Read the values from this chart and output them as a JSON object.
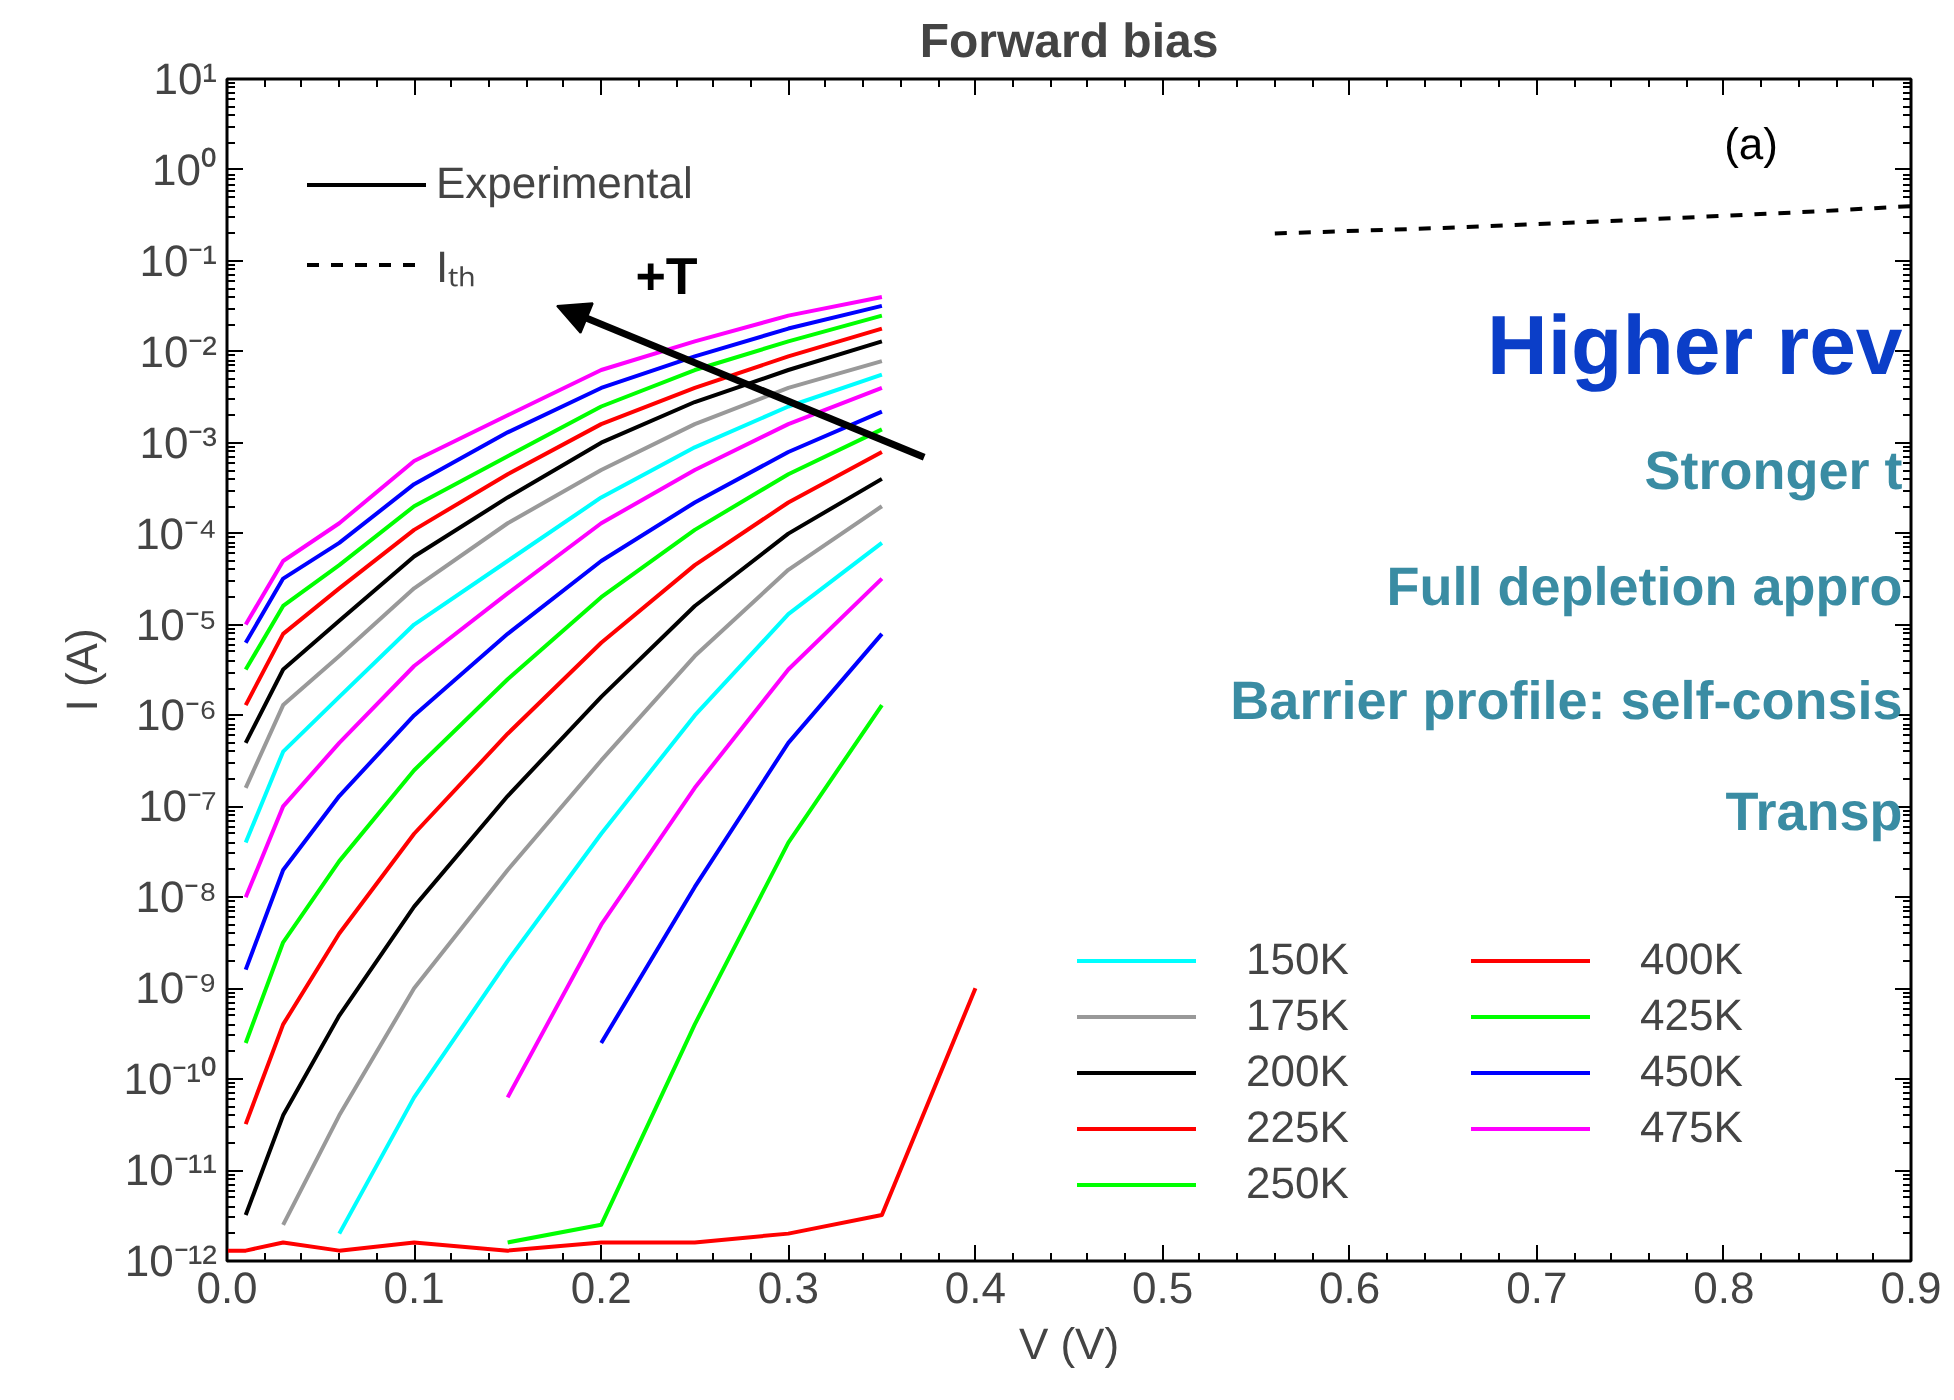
{
  "chart_data": {
    "type": "line",
    "title": "Forward bias",
    "xlabel": "V (V)",
    "ylabel": "I (A)",
    "log": "y",
    "grid": false,
    "legend": "bottom right",
    "xlim": [
      0,
      0.9
    ],
    "ylim": [
      1e-12,
      10
    ],
    "xticks": [
      {
        "value": 0,
        "label": "0.0"
      },
      {
        "value": 0.1,
        "label": "0.1"
      },
      {
        "value": 0.2,
        "label": "0.2"
      },
      {
        "value": 0.3,
        "label": "0.3"
      },
      {
        "value": 0.4,
        "label": "0.4"
      },
      {
        "value": 0.5,
        "label": "0.5"
      },
      {
        "value": 0.6,
        "label": "0.6"
      },
      {
        "value": 0.7,
        "label": "0.7"
      },
      {
        "value": 0.8,
        "label": "0.8"
      },
      {
        "value": 0.9,
        "label": "0.9"
      }
    ],
    "yticks": [
      {
        "value": 1e-12,
        "label": "10⁻¹²"
      },
      {
        "value": 1e-11,
        "label": "10⁻¹¹"
      },
      {
        "value": 1e-10,
        "label": "10⁻¹⁰"
      },
      {
        "value": 1e-09,
        "label": "10⁻⁹"
      },
      {
        "value": 1e-08,
        "label": "10⁻⁸"
      },
      {
        "value": 1e-07,
        "label": "10⁻⁷"
      },
      {
        "value": 1e-06,
        "label": "10⁻⁶"
      },
      {
        "value": 1e-05,
        "label": "10⁻⁵"
      },
      {
        "value": 0.0001,
        "label": "10⁻⁴"
      },
      {
        "value": 0.001,
        "label": "10⁻³"
      },
      {
        "value": 0.01,
        "label": "10⁻²"
      },
      {
        "value": 0.1,
        "label": "10⁻¹"
      },
      {
        "value": 1,
        "label": "10⁰"
      },
      {
        "value": 10,
        "label": "10¹"
      }
    ],
    "x": [
      0,
      0.01,
      0.03,
      0.06,
      0.1,
      0.15,
      0.2,
      0.25,
      0.3,
      0.35,
      0.4
    ],
    "series": [
      {
        "color": "#ff0000",
        "values": [
          1.3e-12,
          1.3e-12,
          1.6e-12,
          1.3e-12,
          1.6e-12,
          1.3e-12,
          1.6e-12,
          1.6e-12,
          2e-12,
          3.2e-12,
          1e-09
        ]
      },
      {
        "color": "#00ff00",
        "values": [
          null,
          null,
          null,
          null,
          null,
          1.6e-12,
          2.5e-12,
          4e-10,
          4e-08,
          1.3e-06,
          null
        ]
      },
      {
        "color": "#0000ff",
        "values": [
          null,
          null,
          null,
          null,
          null,
          null,
          2.5e-10,
          1.3e-08,
          5e-07,
          7.9e-06,
          null
        ]
      },
      {
        "color": "#ff00ff",
        "values": [
          null,
          null,
          null,
          null,
          null,
          6.3e-11,
          5e-09,
          1.6e-07,
          3.2e-06,
          3.2e-05,
          null
        ]
      },
      {
        "name": "150K",
        "color": "#00ffff",
        "values": [
          null,
          null,
          null,
          2e-12,
          6.3e-11,
          2e-09,
          5e-08,
          1e-06,
          1.3e-05,
          7.9e-05,
          null
        ]
      },
      {
        "name": "175K",
        "color": "#999999",
        "values": [
          null,
          null,
          2.5e-12,
          4e-11,
          1e-09,
          2e-08,
          3.2e-07,
          4.5e-06,
          4e-05,
          0.0002,
          null
        ]
      },
      {
        "name": "200K",
        "color": "#000000",
        "values": [
          null,
          3.2e-12,
          4e-11,
          5e-10,
          7.9e-09,
          1.3e-07,
          1.6e-06,
          1.6e-05,
          0.0001,
          0.0004,
          null
        ]
      },
      {
        "name": "225K",
        "color": "#ff0000",
        "values": [
          null,
          3.2e-11,
          4e-10,
          4e-09,
          5e-08,
          6.3e-07,
          6.3e-06,
          4.5e-05,
          0.00022,
          0.00079,
          null
        ]
      },
      {
        "name": "250K",
        "color": "#00ff00",
        "values": [
          null,
          2.5e-10,
          3.2e-09,
          2.5e-08,
          2.5e-07,
          2.5e-06,
          2e-05,
          0.00011,
          0.00045,
          0.0014,
          null
        ]
      },
      {
        "color": "#0000ff",
        "values": [
          null,
          1.6e-09,
          2e-08,
          1.3e-07,
          1e-06,
          7.9e-06,
          5e-05,
          0.00022,
          0.00079,
          0.0022,
          null
        ]
      },
      {
        "color": "#ff00ff",
        "values": [
          null,
          1e-08,
          1e-07,
          5e-07,
          3.5e-06,
          2.2e-05,
          0.00013,
          0.0005,
          0.0016,
          0.004,
          null
        ]
      },
      {
        "color": "#00ffff",
        "values": [
          null,
          4e-08,
          4e-07,
          1.6e-06,
          1e-05,
          5e-05,
          0.00025,
          0.00089,
          0.0025,
          0.0056,
          null
        ]
      },
      {
        "color": "#999999",
        "values": [
          null,
          1.6e-07,
          1.3e-06,
          4.5e-06,
          2.5e-05,
          0.00013,
          0.0005,
          0.0016,
          0.004,
          0.0079,
          null
        ]
      },
      {
        "color": "#000000",
        "values": [
          null,
          5e-07,
          3.2e-06,
          1.1e-05,
          5.6e-05,
          0.00025,
          0.001,
          0.0028,
          0.0063,
          0.013,
          null
        ]
      },
      {
        "name": "400K",
        "color": "#ff0000",
        "values": [
          null,
          1.3e-06,
          7.9e-06,
          2.5e-05,
          0.00011,
          0.00045,
          0.0016,
          0.004,
          0.0089,
          0.018,
          null
        ]
      },
      {
        "name": "425K",
        "color": "#00ff00",
        "values": [
          null,
          3.2e-06,
          1.6e-05,
          4.5e-05,
          0.0002,
          0.00071,
          0.0025,
          0.0063,
          0.013,
          0.025,
          null
        ]
      },
      {
        "name": "450K",
        "color": "#0000ff",
        "values": [
          null,
          6.3e-06,
          3.2e-05,
          7.9e-05,
          0.00035,
          0.0013,
          0.004,
          0.0089,
          0.018,
          0.032,
          null
        ]
      },
      {
        "name": "475K",
        "color": "#ff00ff",
        "values": [
          null,
          1e-05,
          5e-05,
          0.00013,
          0.00063,
          0.002,
          0.0063,
          0.013,
          0.025,
          0.04,
          null
        ]
      },
      {
        "name": "Experimental",
        "color": "#000000",
        "line_style": "solid",
        "values": [
          null,
          null,
          null,
          null,
          null,
          null,
          null,
          null,
          null,
          null,
          null
        ]
      },
      {
        "name": "Iₜₕ",
        "color": "#000000",
        "line_style": "dashed",
        "x": [
          0.56,
          0.65,
          0.75,
          0.85,
          0.9
        ],
        "values": [
          0.2,
          0.23,
          0.28,
          0.35,
          0.4
        ]
      }
    ],
    "annotations": [
      "(a)",
      "Higher rev",
      "Stronger t",
      "Full depletion appro",
      "Barrier profile: self-consis",
      "Transp",
      "+T"
    ]
  }
}
